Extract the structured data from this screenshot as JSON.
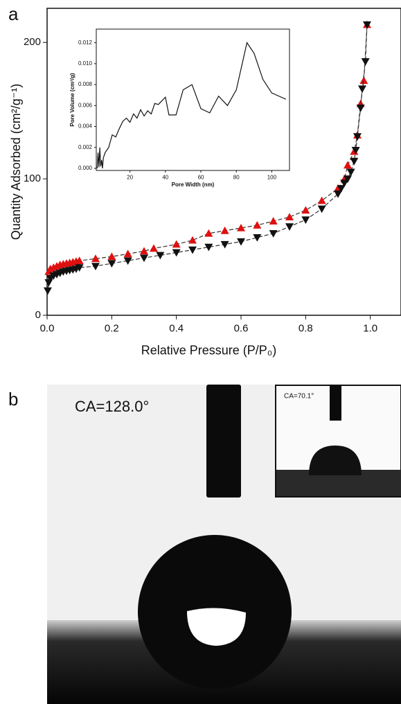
{
  "panel_labels": [
    "a",
    "b"
  ],
  "chart_data": [
    {
      "type": "line",
      "x_label": "Relative Pressure  (P/P₀)",
      "y_label": "Quantity Adsorbed (cm²/g⁻¹)",
      "xlim": [
        0,
        1.095
      ],
      "ylim": [
        0,
        225
      ],
      "xticks": [
        {
          "value": 0,
          "label": "0.0"
        },
        {
          "value": 0.2,
          "label": "0.2"
        },
        {
          "value": 0.4,
          "label": "0.4"
        },
        {
          "value": 0.6,
          "label": "0.6"
        },
        {
          "value": 0.8,
          "label": "0.8"
        },
        {
          "value": 1,
          "label": "1.0"
        }
      ],
      "yticks": [
        0,
        100,
        200
      ],
      "series": [
        {
          "color": "#e01010",
          "marker": "triangle-up",
          "x": [
            0.005,
            0.01,
            0.02,
            0.03,
            0.04,
            0.05,
            0.06,
            0.07,
            0.08,
            0.09,
            0.1,
            0.15,
            0.2,
            0.25,
            0.3,
            0.33,
            0.4,
            0.45,
            0.5,
            0.55,
            0.6,
            0.65,
            0.7,
            0.75,
            0.8,
            0.85,
            0.9,
            0.92,
            0.93,
            0.95,
            0.96,
            0.97,
            0.98,
            0.99
          ],
          "values": [
            32,
            34,
            35,
            36,
            37,
            37.5,
            38,
            38.5,
            39,
            39.5,
            40,
            41.5,
            43,
            45,
            47,
            49,
            52,
            55,
            60,
            62,
            64,
            66,
            69,
            72,
            77,
            84,
            93,
            100,
            110,
            120,
            132,
            155,
            172,
            213
          ]
        },
        {
          "color": "#111111",
          "marker": "triangle-down",
          "x": [
            0.99,
            0.985,
            0.975,
            0.97,
            0.96,
            0.955,
            0.95,
            0.94,
            0.93,
            0.92,
            0.91,
            0.9,
            0.85,
            0.8,
            0.75,
            0.7,
            0.65,
            0.6,
            0.55,
            0.5,
            0.45,
            0.4,
            0.35,
            0.3,
            0.25,
            0.2,
            0.15,
            0.1,
            0.09,
            0.08,
            0.07,
            0.06,
            0.05,
            0.04,
            0.03,
            0.02,
            0.01,
            0.005,
            0.002
          ],
          "values": [
            213,
            186,
            166,
            152,
            131,
            121,
            113,
            105,
            100,
            97,
            93,
            89,
            78,
            70,
            65,
            60,
            57,
            54,
            52,
            50,
            48,
            46,
            44,
            42,
            40,
            38,
            36,
            35,
            34,
            33.5,
            33,
            32.5,
            32,
            31,
            30,
            29,
            27,
            24,
            18
          ]
        }
      ]
    },
    {
      "type": "line",
      "x_label": "Pore Width (nm)",
      "y_label": "Pore Volume (cm³/g)",
      "xlim": [
        1,
        110
      ],
      "ylim": [
        -0.0002,
        0.0133
      ],
      "xticks": [
        20,
        40,
        60,
        80,
        100
      ],
      "yticks": [
        {
          "value": 0,
          "label": "0.000"
        },
        {
          "value": 0.002,
          "label": "0.002"
        },
        {
          "value": 0.004,
          "label": "0.004"
        },
        {
          "value": 0.006,
          "label": "0.006"
        },
        {
          "value": 0.008,
          "label": "0.008"
        },
        {
          "value": 0.01,
          "label": "0.010"
        },
        {
          "value": 0.012,
          "label": "0.012"
        }
      ],
      "series": [
        {
          "color": "#111111",
          "x": [
            1.5,
            2,
            2.5,
            3,
            3.5,
            4,
            4.5,
            5,
            6,
            8,
            10,
            12,
            14,
            16,
            18,
            20,
            22,
            24,
            26,
            28,
            30,
            32,
            34,
            36,
            40,
            42,
            46,
            50,
            55,
            60,
            65,
            70,
            75,
            80,
            86,
            90,
            95,
            100,
            108
          ],
          "values": [
            0.0,
            0.0015,
            0.0001,
            0.002,
            0.0002,
            0.0008,
            0.0,
            0.001,
            0.0015,
            0.002,
            0.0032,
            0.003,
            0.0038,
            0.0045,
            0.0048,
            0.0044,
            0.0052,
            0.0048,
            0.0056,
            0.005,
            0.0055,
            0.0052,
            0.0062,
            0.0061,
            0.0068,
            0.0051,
            0.0051,
            0.0075,
            0.008,
            0.0057,
            0.0053,
            0.0069,
            0.006,
            0.0075,
            0.012,
            0.011,
            0.0085,
            0.0072,
            0.0066
          ]
        }
      ]
    }
  ],
  "panel_b": {
    "contact_angle": "CA=128.0°",
    "inset_contact_angle": "CA=70.1°"
  }
}
